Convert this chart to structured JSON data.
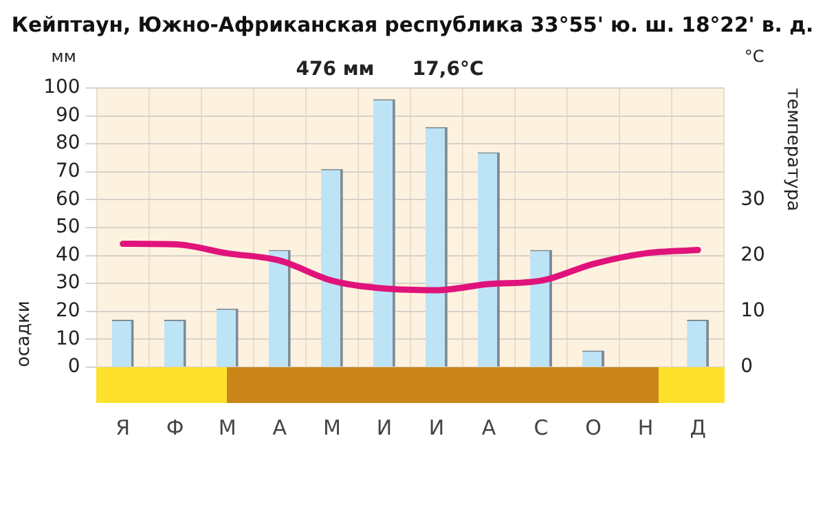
{
  "chart_data": {
    "type": "bar",
    "title": "Кейптаун, Южно-Африканская республика 33°55' ю. ш. 18°22' в. д.",
    "annotations": [
      "476 мм",
      "17,6°C",
      "мм",
      "°C"
    ],
    "ylabel": "осадки",
    "y2label": "температура",
    "categories": [
      "Я",
      "Ф",
      "М",
      "А",
      "М",
      "И",
      "И",
      "А",
      "С",
      "О",
      "Н",
      "Д"
    ],
    "series": [
      {
        "color": "#bde3f7",
        "values": [
          17,
          17,
          21,
          42,
          71,
          96,
          86,
          77,
          42,
          6,
          0,
          17
        ]
      },
      {
        "type": "line",
        "axis": "y2",
        "color": "#e0137b",
        "values": [
          22.1,
          22.0,
          20.4,
          19.1,
          15.5,
          14.1,
          13.8,
          14.9,
          15.5,
          18.5,
          20.4,
          21.0
        ]
      }
    ],
    "ylim": [
      0,
      100
    ],
    "yticks": [
      0,
      10,
      20,
      30,
      40,
      50,
      60,
      70,
      80,
      90,
      100
    ],
    "y2lim": [
      0,
      50
    ],
    "y2ticks": [
      0,
      10,
      20,
      30
    ],
    "grid": true,
    "legend": false,
    "marker": "none",
    "line_style": "solid"
  }
}
